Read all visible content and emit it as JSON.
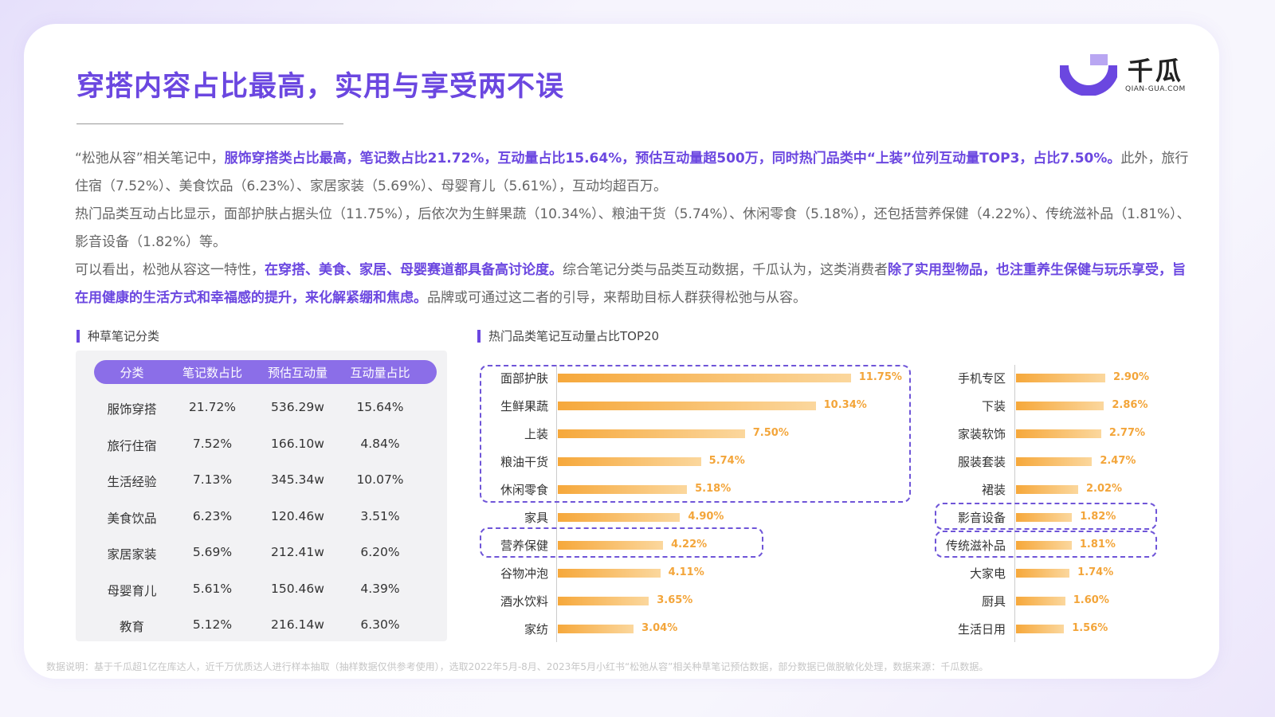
{
  "title": "穿搭内容占比最高，实用与享受两不误",
  "logo": {
    "cn": "千瓜",
    "en": "QIAN-GUA.COM"
  },
  "paragraphs": [
    [
      {
        "t": "“松弛从容”相关笔记中，",
        "b": false
      },
      {
        "t": "服饰穿搭类占比最高，笔记数占比21.72%，互动量占比15.64%，预估互动量超500万，同时热门品类中“上装”位列互动量TOP3，占比7.50%。",
        "b": true
      },
      {
        "t": "此外，旅行住宿（7.52%）、美食饮品（6.23%）、家居家装（5.69%）、母婴育儿（5.61%），互动均超百万。",
        "b": false
      }
    ],
    [
      {
        "t": "热门品类互动占比显示，面部护肤占据头位（11.75%），后依次为生鲜果蔬（10.34%）、粮油干货（5.74%）、休闲零食（5.18%），还包括营养保健（4.22%）、传统滋补品（1.81%）、影音设备（1.82%）等。",
        "b": false
      }
    ],
    [
      {
        "t": "可以看出，松弛从容这一特性，",
        "b": false
      },
      {
        "t": "在穿搭、美食、家居、母婴赛道都具备高讨论度。",
        "b": true
      },
      {
        "t": "综合笔记分类与品类互动数据，千瓜认为，这类消费者",
        "b": false
      },
      {
        "t": "除了实用型物品，也注重养生保健与玩乐享受，旨在用健康的生活方式和幸福感的提升，来化解紧绷和焦虑。",
        "b": true
      },
      {
        "t": "品牌或可通过这二者的引导，来帮助目标人群获得松弛与从容。",
        "b": false
      }
    ]
  ],
  "table": {
    "title": "种草笔记分类",
    "headers": [
      "分类",
      "笔记数占比",
      "预估互动量",
      "互动量占比"
    ],
    "rows": [
      [
        "服饰穿搭",
        "21.72%",
        "536.29w",
        "15.64%"
      ],
      [
        "旅行住宿",
        "7.52%",
        "166.10w",
        "4.84%"
      ],
      [
        "生活经验",
        "7.13%",
        "345.34w",
        "10.07%"
      ],
      [
        "美食饮品",
        "6.23%",
        "120.46w",
        "3.51%"
      ],
      [
        "家居家装",
        "5.69%",
        "212.41w",
        "6.20%"
      ],
      [
        "母婴育儿",
        "5.61%",
        "150.46w",
        "4.39%"
      ],
      [
        "教育",
        "5.12%",
        "216.14w",
        "6.30%"
      ]
    ]
  },
  "chart_data": {
    "type": "bar",
    "title": "热门品类笔记互动量占比TOP20",
    "series": [
      {
        "name": "left",
        "categories": [
          "面部护肤",
          "生鲜果蔬",
          "上装",
          "粮油干货",
          "休闲零食",
          "家具",
          "营养保健",
          "谷物冲泡",
          "酒水饮料",
          "家纺"
        ],
        "values": [
          11.75,
          10.34,
          7.5,
          5.74,
          5.18,
          4.9,
          4.22,
          4.11,
          3.65,
          3.04
        ],
        "labels": [
          "11.75%",
          "10.34%",
          "7.50%",
          "5.74%",
          "5.18%",
          "4.90%",
          "4.22%",
          "4.11%",
          "3.65%",
          "3.04%"
        ]
      },
      {
        "name": "right",
        "categories": [
          "手机专区",
          "下装",
          "家装软饰",
          "服装套装",
          "裙装",
          "影音设备",
          "传统滋补品",
          "大家电",
          "厨具",
          "生活日用"
        ],
        "values": [
          2.9,
          2.86,
          2.77,
          2.47,
          2.02,
          1.82,
          1.81,
          1.74,
          1.6,
          1.56
        ],
        "labels": [
          "2.90%",
          "2.86%",
          "2.77%",
          "2.47%",
          "2.02%",
          "1.82%",
          "1.81%",
          "1.74%",
          "1.60%",
          "1.56%"
        ]
      }
    ],
    "highlighted": [
      "面部护肤",
      "生鲜果蔬",
      "上装",
      "粮油干货",
      "休闲零食",
      "营养保健",
      "影音设备",
      "传统滋补品"
    ],
    "colors": {
      "bar_start": "#f6a83b",
      "bar_end": "#fbd79d",
      "highlight_box": "#6f55d8"
    }
  },
  "footer": "数据说明：基于千瓜超1亿在库达人，近千万优质达人进行样本抽取（抽样数据仅供参考使用），选取2022年5月-8月、2023年5月小红书“松弛从容”相关种草笔记预估数据，部分数据已做脱敏化处理，数据来源：千瓜数据。"
}
